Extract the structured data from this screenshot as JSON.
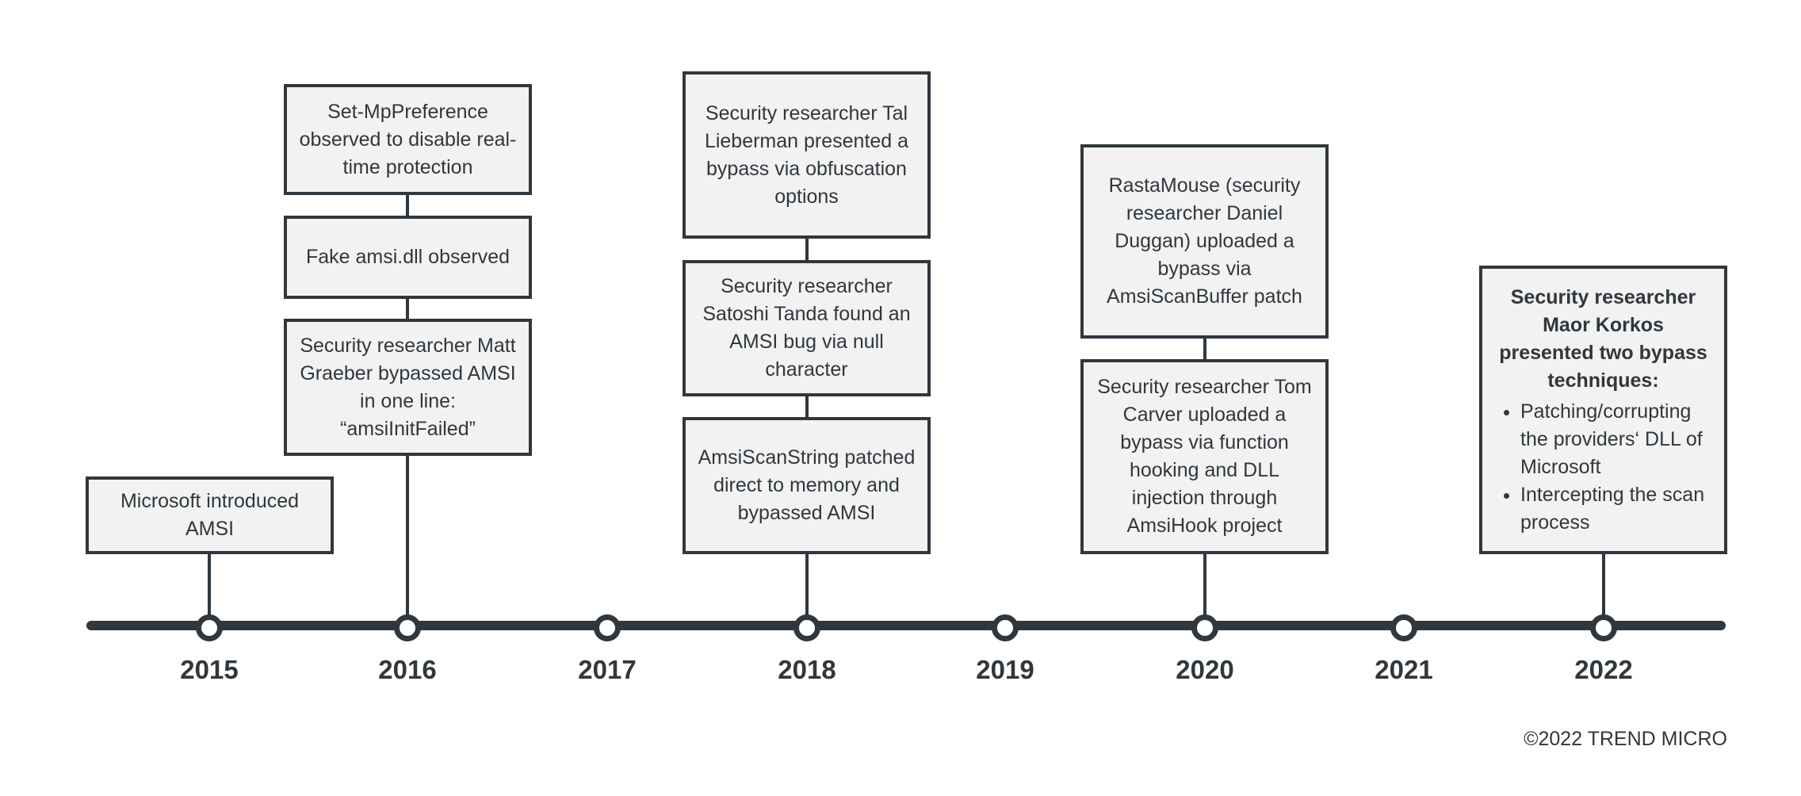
{
  "years": [
    "2015",
    "2016",
    "2017",
    "2018",
    "2019",
    "2020",
    "2021",
    "2022"
  ],
  "events": {
    "e2015": "Microsoft introduced AMSI",
    "e2016a": "Set-MpPreference observed to disable real-time protection",
    "e2016b": "Fake amsi.dll observed",
    "e2016c": "Security researcher Matt Graeber bypassed AMSI in one line: “amsiInitFailed”",
    "e2018a": "Security researcher Tal Lieberman presented a bypass via obfuscation options",
    "e2018b": "Security researcher Satoshi Tanda found an AMSI bug via null character",
    "e2018c": "AmsiScanString patched direct to memory and bypassed AMSI",
    "e2020a": "RastaMouse (security researcher Daniel Duggan) uploaded a bypass via AmsiScanBuffer patch",
    "e2020b": "Security researcher Tom Carver uploaded a bypass via function hooking and DLL injection through AmsiHook project",
    "e2022_title": "Security researcher Maor Korkos presented two bypass techniques:",
    "e2022_items": [
      "Patching/corrupting the providers‘ DLL of Microsoft",
      "Intercepting the scan process"
    ]
  },
  "copyright": "©2022 TREND MICRO",
  "colors": {
    "line": "#30373d",
    "box_fill": "#f2f2f2"
  }
}
